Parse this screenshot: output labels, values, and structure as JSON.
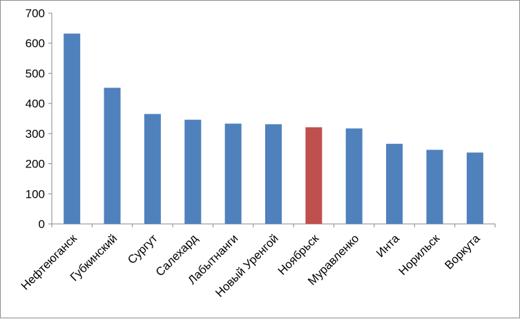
{
  "chart_data": {
    "type": "bar",
    "title": "",
    "xlabel": "",
    "ylabel": "",
    "ylim": [
      0,
      700
    ],
    "yticks": [
      0,
      100,
      200,
      300,
      400,
      500,
      600,
      700
    ],
    "grid": false,
    "legend": "none",
    "categories": [
      "Нефтеюганск",
      "Губкинский",
      "Сургут",
      "Салехард",
      "Лабытнанги",
      "Новый Уренгой",
      "Ноябрьск",
      "Муравленко",
      "Инта",
      "Норильск",
      "Воркута"
    ],
    "values": [
      632,
      452,
      365,
      346,
      333,
      331,
      321,
      317,
      266,
      246,
      237
    ],
    "bar_color": "#4f81bd",
    "highlight_color": "#c0504d",
    "highlight_index": 6
  }
}
